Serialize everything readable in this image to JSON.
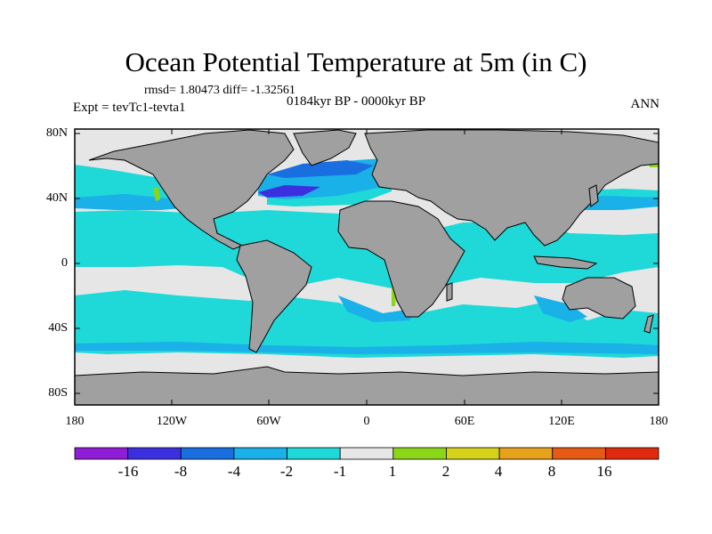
{
  "plot": {
    "title": "Ocean Potential Temperature at 5m (in C)",
    "stats": "rmsd= 1.80473 diff= -1.32561",
    "period": "0184kyr BP - 0000kyr BP",
    "experiment": "Expt = tevTc1-tevta1",
    "season": "ANN"
  },
  "axes": {
    "lat_labels": [
      "80N",
      "40N",
      "0",
      "40S",
      "80S"
    ],
    "lon_labels": [
      "180",
      "120W",
      "60W",
      "0",
      "60E",
      "120E",
      "180"
    ]
  },
  "colorbar": {
    "labels": [
      "-16",
      "-8",
      "-4",
      "-2",
      "-1",
      "1",
      "2",
      "4",
      "8",
      "16"
    ],
    "colors": [
      "#8f1dd6",
      "#3c2fe0",
      "#1a6fe0",
      "#1ab0e8",
      "#1fd8d8",
      "#e6e6e6",
      "#8cd61a",
      "#d6d21a",
      "#e6a21a",
      "#e65a14",
      "#e02a0e"
    ]
  },
  "map_colors": {
    "land": "#a0a0a0",
    "ocean_neutral": "#e6e6e6",
    "cool_1": "#1fd8d8",
    "cool_2": "#1ab0e8",
    "cool_3": "#1a6fe0",
    "cool_4": "#3c2fe0",
    "warm_1": "#8cd61a"
  }
}
